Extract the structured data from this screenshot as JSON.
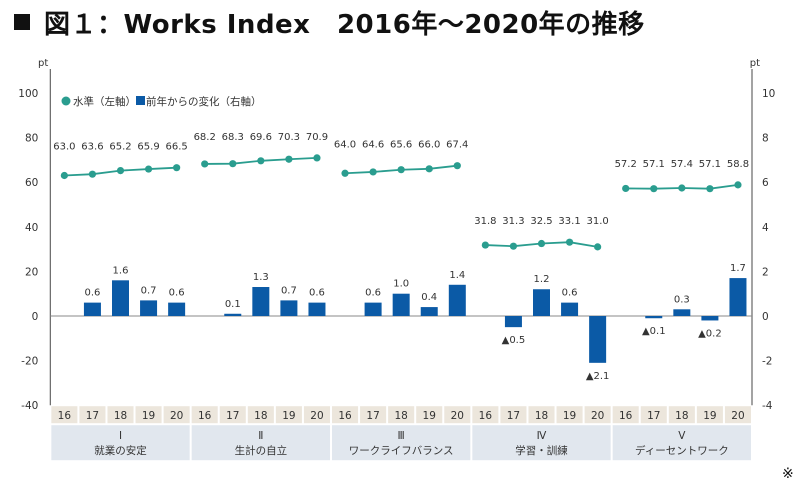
{
  "title": "図１：Works Index　2016年〜2020年の推移",
  "title_bullet": "square",
  "corner_mark": "※",
  "colors": {
    "line": "#2a9d8f",
    "bar": "#0b5aa6",
    "year_strip": "#ece6dc",
    "category_strip": "#e1e7ee",
    "axis": "#666666"
  },
  "chart_data": {
    "type": "bar+line",
    "title": "図１：Works Index　2016年〜2020年の推移",
    "left_axis": {
      "unit": "pt",
      "range": [
        -40,
        100
      ],
      "ticks": [
        -40,
        -20,
        0,
        20,
        40,
        60,
        80,
        100
      ],
      "tick_labels": [
        "-40",
        "-20",
        "0",
        "20",
        "40",
        "60",
        "80",
        "100"
      ]
    },
    "right_axis": {
      "unit": "pt",
      "range": [
        -4,
        10
      ],
      "ticks": [
        -4,
        -2,
        0,
        2,
        4,
        6,
        8,
        10
      ],
      "tick_labels": [
        "-4",
        "-2",
        "0",
        "2",
        "4",
        "6",
        "8",
        "10"
      ]
    },
    "legend": {
      "position": "top-left",
      "items": [
        {
          "label": "水準（左軸）",
          "marker": "circle",
          "series": "level"
        },
        {
          "label": "前年からの変化（右軸）",
          "marker": "square",
          "series": "change"
        }
      ]
    },
    "years": [
      "16",
      "17",
      "18",
      "19",
      "20"
    ],
    "groups": [
      {
        "numeral": "Ⅰ",
        "name": "就業の安定",
        "level": [
          63.0,
          63.6,
          65.2,
          65.9,
          66.5
        ],
        "level_labels": [
          "63.0",
          "63.6",
          "65.2",
          "65.9",
          "66.5"
        ],
        "change": [
          null,
          0.6,
          1.6,
          0.7,
          0.6
        ],
        "change_labels": [
          "",
          "0.6",
          "1.6",
          "0.7",
          "0.6"
        ]
      },
      {
        "numeral": "Ⅱ",
        "name": "生計の自立",
        "level": [
          68.2,
          68.3,
          69.6,
          70.3,
          70.9
        ],
        "level_labels": [
          "68.2",
          "68.3",
          "69.6",
          "70.3",
          "70.9"
        ],
        "change": [
          null,
          0.1,
          1.3,
          0.7,
          0.6
        ],
        "change_labels": [
          "",
          "0.1",
          "1.3",
          "0.7",
          "0.6"
        ]
      },
      {
        "numeral": "Ⅲ",
        "name": "ワークライフバランス",
        "level": [
          64.0,
          64.6,
          65.6,
          66.0,
          67.4
        ],
        "level_labels": [
          "64.0",
          "64.6",
          "65.6",
          "66.0",
          "67.4"
        ],
        "change": [
          null,
          0.6,
          1.0,
          0.4,
          1.4
        ],
        "change_labels": [
          "",
          "0.6",
          "1.0",
          "0.4",
          "1.4"
        ]
      },
      {
        "numeral": "Ⅳ",
        "name": "学習・訓練",
        "level": [
          31.8,
          31.3,
          32.5,
          33.1,
          31.0
        ],
        "level_labels": [
          "31.8",
          "31.3",
          "32.5",
          "33.1",
          "31.0"
        ],
        "change": [
          null,
          -0.5,
          1.2,
          0.6,
          -2.1
        ],
        "change_labels": [
          "",
          "▲0.5",
          "1.2",
          "0.6",
          "▲2.1"
        ]
      },
      {
        "numeral": "Ⅴ",
        "name": "ディーセントワーク",
        "level": [
          57.2,
          57.1,
          57.4,
          57.1,
          58.8
        ],
        "level_labels": [
          "57.2",
          "57.1",
          "57.4",
          "57.1",
          "58.8"
        ],
        "change": [
          null,
          -0.1,
          0.3,
          -0.2,
          1.7
        ],
        "change_labels": [
          "",
          "▲0.1",
          "0.3",
          "▲0.2",
          "1.7"
        ]
      }
    ],
    "grid": false
  }
}
